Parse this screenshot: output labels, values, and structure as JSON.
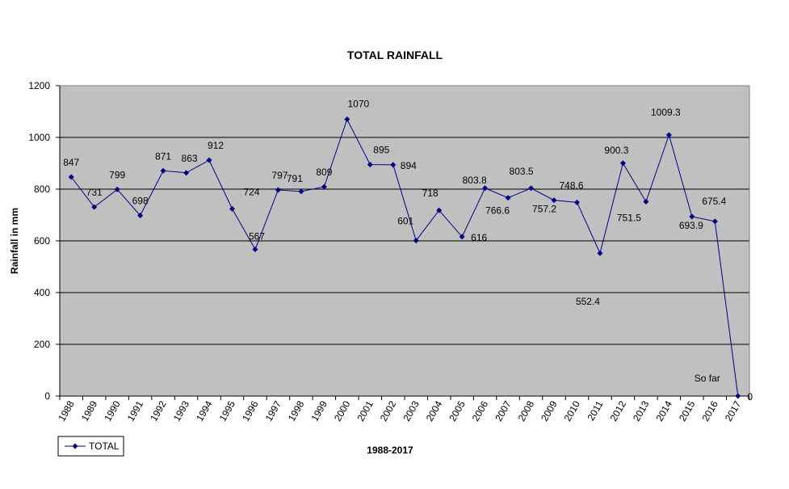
{
  "chart_data": {
    "type": "line",
    "title": "TOTAL RAINFALL",
    "xlabel": "1988-2017",
    "ylabel": "Rainfall in mm",
    "ylim": [
      0,
      1200
    ],
    "yticks": [
      "0",
      "200",
      "400",
      "600",
      "800",
      "1000",
      "1200"
    ],
    "grid": true,
    "legend_position": "bottom-left",
    "colors": {
      "series": "#000080",
      "plot_background": "#c0c0c0",
      "gridline": "#000000"
    },
    "categories": [
      "1988",
      "1989",
      "1990",
      "1991",
      "1992",
      "1993",
      "1994",
      "1995",
      "1996",
      "1997",
      "1998",
      "1999",
      "2000",
      "2001",
      "2002",
      "2003",
      "2004",
      "2005",
      "2006",
      "2007",
      "2008",
      "2009",
      "2010",
      "2011",
      "2012",
      "2013",
      "2014",
      "2015",
      "2016",
      "2017"
    ],
    "series": [
      {
        "name": "TOTAL",
        "values": [
          847,
          731,
          799,
          698,
          871,
          863,
          912,
          724,
          567,
          797,
          791,
          809,
          1070,
          895,
          894,
          601,
          718,
          616,
          803.8,
          766.6,
          803.5,
          757.2,
          748.6,
          552.4,
          900.3,
          751.5,
          1009.3,
          693.9,
          675.4,
          0
        ],
        "data_labels": [
          "847",
          "731",
          "799",
          "698",
          "871",
          "863",
          "912",
          "724",
          "567",
          "797",
          "791",
          "809",
          "1070",
          "895",
          "894",
          "601",
          "718",
          "616",
          "803.8",
          "766.6",
          "803.5",
          "757.2",
          "748.6",
          "552.4",
          "900.3",
          "751.5",
          "1009.3",
          "693.9",
          "675.4",
          "0"
        ]
      }
    ],
    "annotations": [
      {
        "text": "So far",
        "category": "2017"
      }
    ]
  }
}
